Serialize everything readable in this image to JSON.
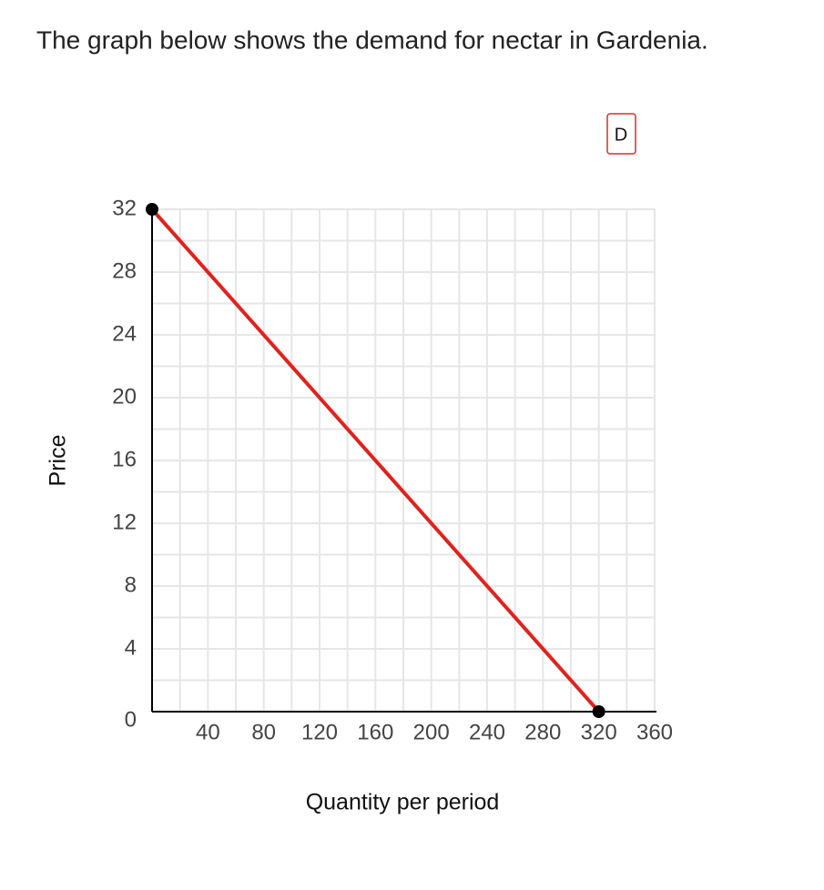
{
  "question": "The graph below shows the demand for nectar in Gardenia.",
  "chart_data": {
    "type": "line",
    "x_label": "Quantity per period",
    "y_label": "Price",
    "xlim": [
      0,
      360
    ],
    "ylim": [
      0,
      32
    ],
    "xticks": [
      40,
      80,
      120,
      160,
      200,
      240,
      280,
      320,
      360
    ],
    "yticks": [
      0,
      4,
      8,
      12,
      16,
      20,
      24,
      28,
      32
    ],
    "grid": true,
    "minor_grid": true,
    "series": [
      {
        "name": "D",
        "color": "#e0221f",
        "marker_color": "#000000",
        "x": [
          0,
          320
        ],
        "values": [
          32,
          0
        ]
      }
    ]
  }
}
